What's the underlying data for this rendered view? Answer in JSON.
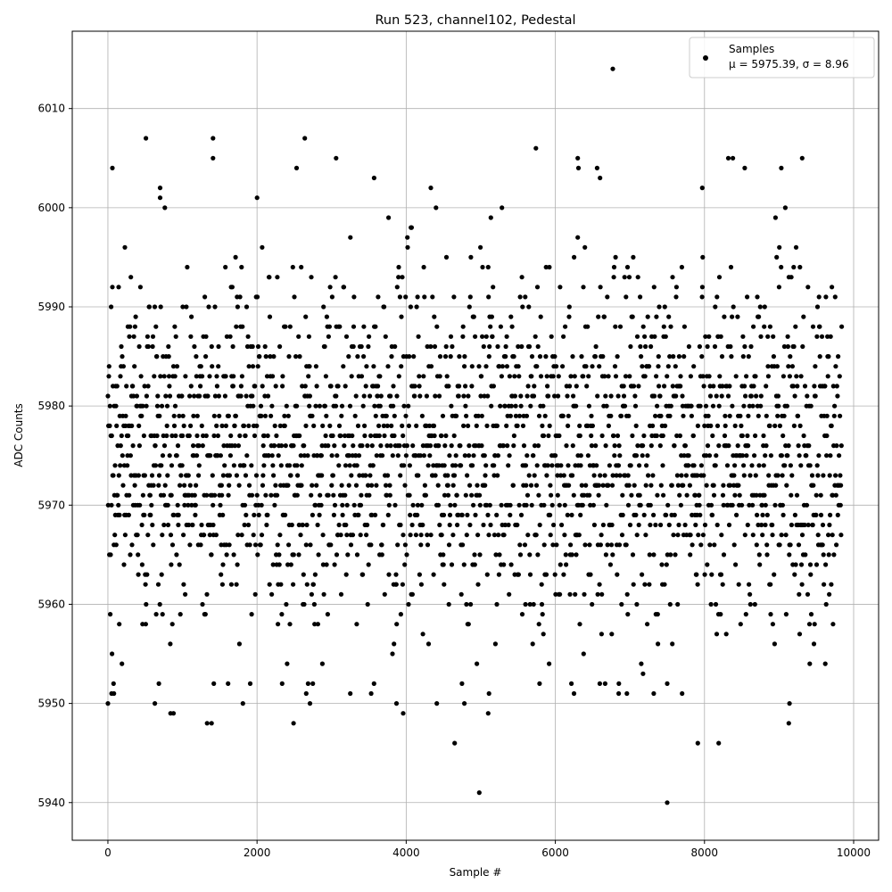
{
  "chart_data": {
    "type": "scatter",
    "title": "Run 523, channel102, Pedestal",
    "xlabel": "Sample #",
    "ylabel": "ADC Counts",
    "xlim": [
      -478,
      10335
    ],
    "ylim": [
      5936.2,
      6017.8
    ],
    "xticks": [
      0,
      2000,
      4000,
      6000,
      8000,
      10000
    ],
    "xtick_labels": [
      "0",
      "2000",
      "4000",
      "6000",
      "8000",
      "10000"
    ],
    "yticks": [
      5940,
      5950,
      5960,
      5970,
      5980,
      5990,
      6000,
      6010
    ],
    "ytick_labels": [
      "5940",
      "5950",
      "5960",
      "5970",
      "5980",
      "5990",
      "6000",
      "6010"
    ],
    "grid": true,
    "legend": {
      "placement": "upper-right",
      "entries": [
        {
          "name": "Samples",
          "stats": "μ = 5975.39, σ = 8.96"
        }
      ]
    },
    "marker_color": "#000000",
    "series": [
      {
        "name": "Samples",
        "mean": 5975.39,
        "sigma": 8.96,
        "x_range": [
          0,
          9840
        ],
        "outliers": [
          [
            60,
            6004
          ],
          [
            510,
            6007
          ],
          [
            700,
            6002
          ],
          [
            700,
            6001
          ],
          [
            1410,
            6007
          ],
          [
            1410,
            6005
          ],
          [
            2000,
            6001
          ],
          [
            2530,
            6004
          ],
          [
            2640,
            6007
          ],
          [
            3060,
            6005
          ],
          [
            3570,
            6003
          ],
          [
            4330,
            6002
          ],
          [
            5740,
            6006
          ],
          [
            6300,
            6005
          ],
          [
            6310,
            6004
          ],
          [
            6560,
            6004
          ],
          [
            6600,
            6003
          ],
          [
            6770,
            6014
          ],
          [
            8320,
            6005
          ],
          [
            8380,
            6005
          ],
          [
            8540,
            6004
          ],
          [
            9030,
            6004
          ],
          [
            9310,
            6005
          ],
          [
            7970,
            6002
          ],
          [
            4980,
            5941
          ],
          [
            7500,
            5940
          ],
          [
            4650,
            5946
          ],
          [
            7910,
            5946
          ],
          [
            8190,
            5946
          ],
          [
            2490,
            5948
          ],
          [
            1330,
            5948
          ],
          [
            1390,
            5948
          ],
          [
            9130,
            5948
          ],
          [
            840,
            5949
          ],
          [
            880,
            5949
          ],
          [
            3960,
            5949
          ],
          [
            5100,
            5949
          ],
          [
            0,
            5950
          ],
          [
            630,
            5950
          ],
          [
            1810,
            5950
          ],
          [
            2710,
            5950
          ],
          [
            3870,
            5950
          ],
          [
            4410,
            5950
          ],
          [
            4780,
            5950
          ],
          [
            9140,
            5950
          ],
          [
            50,
            5951
          ],
          [
            80,
            5951
          ],
          [
            2660,
            5951
          ],
          [
            3250,
            5951
          ],
          [
            3530,
            5951
          ],
          [
            5110,
            5951
          ],
          [
            6250,
            5951
          ],
          [
            6850,
            5951
          ],
          [
            6960,
            5951
          ],
          [
            7320,
            5951
          ],
          [
            7700,
            5951
          ]
        ]
      }
    ]
  }
}
